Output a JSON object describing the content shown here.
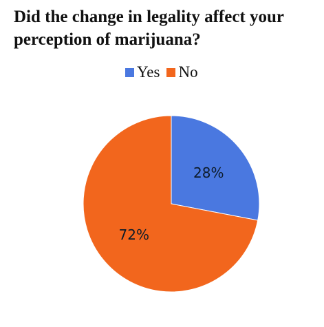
{
  "chart_data": {
    "type": "pie",
    "title": "Did the change in legality affect your perception of marijuana?",
    "categories": [
      "Yes",
      "No"
    ],
    "values": [
      28,
      72
    ],
    "labels": [
      "28%",
      "72%"
    ],
    "colors": [
      "#4a78e0",
      "#f2661d"
    ],
    "legend_position": "top"
  }
}
